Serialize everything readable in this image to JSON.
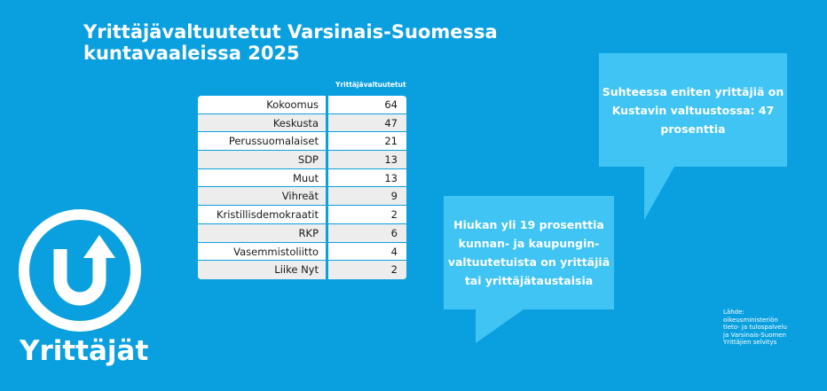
{
  "header": {
    "title_line1": "Yrittäjävaltuutetut Varsinais-Suomessa",
    "title_line2": "kuntavaaleissa 2025"
  },
  "chart_data": {
    "type": "table",
    "column_header": "Yrittäjävaltuutetut",
    "categories": [
      "Kokoomus",
      "Keskusta",
      "Perussuomalaiset",
      "SDP",
      "Muut",
      "Vihreät",
      "Kristillisdemokraatit",
      "RKP",
      "Vasemmistoliitto",
      "Liike Nyt"
    ],
    "values": [
      64,
      47,
      21,
      13,
      13,
      9,
      2,
      6,
      4,
      2
    ]
  },
  "callouts": {
    "top": [
      "Suhteessa eniten yrittäjiä on",
      "Kustavin valtuustossa: 47",
      "prosenttia"
    ],
    "bottom": [
      "Hiukan yli 19 prosenttia",
      "kunnan- ja kaupungin-",
      "valtuutetuista on yrittäjiä",
      "tai yrittäjätaustaisia"
    ]
  },
  "source": {
    "lines": [
      "Lähde:",
      "oikeusministeriön",
      "tieto- ja tulospalvelu",
      "ja Varsinais-Suomen",
      "Yrittäjien selvitys"
    ]
  },
  "brand": {
    "name": "Yrittäjät",
    "logo_icon": "yrittajat-logo-icon"
  },
  "colors": {
    "background": "#0aa0df",
    "bubble": "#3fc4f4",
    "table_bg": "#ffffff",
    "table_alt": "#ededed"
  }
}
